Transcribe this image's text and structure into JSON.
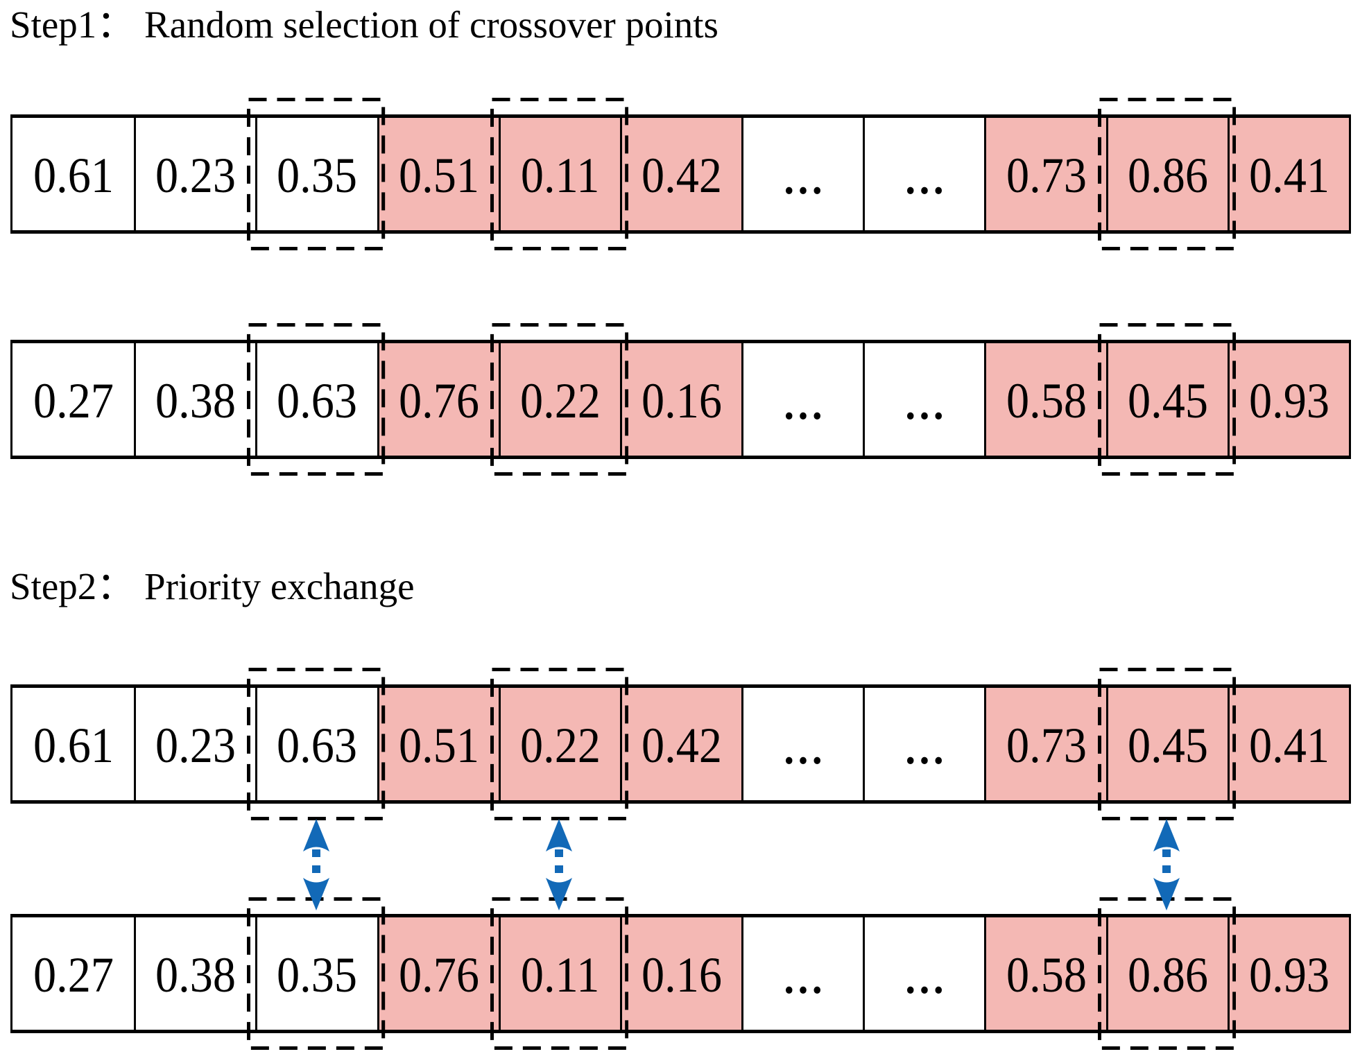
{
  "figure": {
    "description": "Two-step crossover operation diagram"
  },
  "step1": {
    "title": "Step1： Random selection of crossover points"
  },
  "step2": {
    "title": "Step2： Priority exchange"
  },
  "rows": [
    {
      "name": "step1-parent-1",
      "values": [
        "0.61",
        "0.23",
        "0.35",
        "0.51",
        "0.11",
        "0.42",
        "...",
        "...",
        "0.73",
        "0.86",
        "0.41"
      ]
    },
    {
      "name": "step1-parent-2",
      "values": [
        "0.27",
        "0.38",
        "0.63",
        "0.76",
        "0.22",
        "0.16",
        "...",
        "...",
        "0.58",
        "0.45",
        "0.93"
      ]
    },
    {
      "name": "step2-offspring-1",
      "values": [
        "0.61",
        "0.23",
        "0.63",
        "0.51",
        "0.22",
        "0.42",
        "...",
        "...",
        "0.73",
        "0.45",
        "0.41"
      ]
    },
    {
      "name": "step2-offspring-2",
      "values": [
        "0.27",
        "0.38",
        "0.35",
        "0.76",
        "0.11",
        "0.16",
        "...",
        "...",
        "0.58",
        "0.86",
        "0.93"
      ]
    }
  ],
  "highlighted_columns": [
    3,
    4,
    5,
    8,
    9,
    10
  ],
  "crossover_columns": [
    2,
    4,
    9
  ],
  "exchange_arrow_columns": [
    2,
    4,
    9
  ],
  "colors": {
    "highlight": "#f4b8b4",
    "arrow": "#1269b7",
    "line": "#000000"
  }
}
